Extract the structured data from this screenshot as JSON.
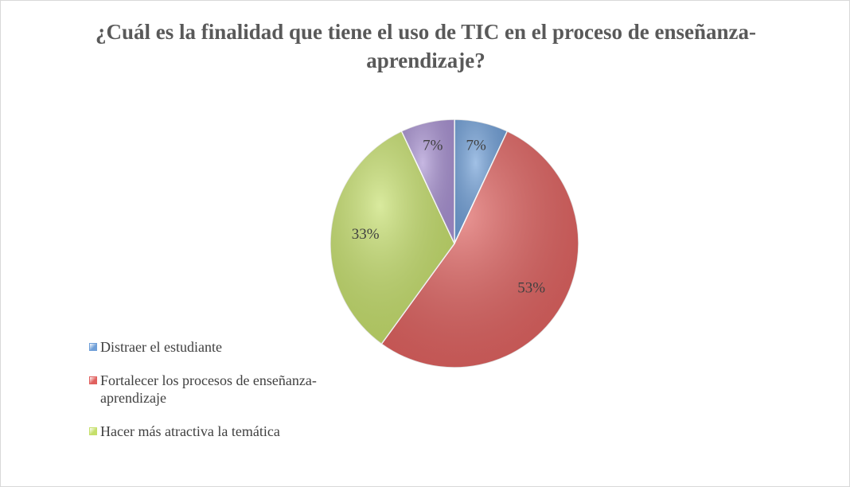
{
  "chart_data": {
    "type": "pie",
    "title": "¿Cuál es la finalidad que tiene el uso de TIC en el proceso de enseñanza-aprendizaje?",
    "categories": [
      "Distraer el estudiante",
      "Fortalecer los procesos de enseñanza-aprendizaje",
      "Hacer más atractiva la temática",
      null
    ],
    "values": [
      7,
      53,
      33,
      7
    ],
    "value_labels": [
      "7%",
      "53%",
      "33%",
      "7%"
    ],
    "colors": [
      "#6f9fd8",
      "#e0605e",
      "#c5df6a",
      "#a891d2"
    ],
    "legend": "left"
  }
}
